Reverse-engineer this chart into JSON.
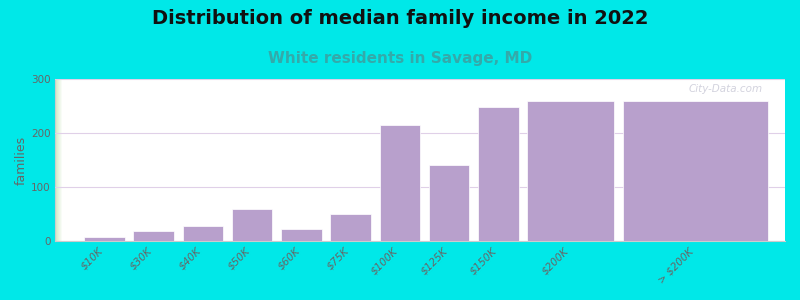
{
  "title": "Distribution of median family income in 2022",
  "subtitle": "White residents in Savage, MD",
  "ylabel": "families",
  "categories": [
    "$10K",
    "$30K",
    "$40K",
    "$50K",
    "$60K",
    "$75K",
    "$100K",
    "$125K",
    "$150K",
    "$200K",
    "> $200K"
  ],
  "values": [
    8,
    18,
    27,
    60,
    22,
    50,
    215,
    140,
    248,
    260,
    260
  ],
  "bar_widths": [
    0.7,
    0.7,
    0.7,
    0.7,
    0.7,
    0.7,
    0.7,
    0.7,
    0.7,
    1.5,
    2.5
  ],
  "bar_color": "#b8a0cc",
  "bar_edgecolor": "white",
  "background_outer": "#00e8e8",
  "background_inner_colors": [
    "#d0e8c0",
    "#e8f0e0",
    "#f5f5f5",
    "#ffffff"
  ],
  "title_fontsize": 14,
  "subtitle_fontsize": 11,
  "subtitle_color": "#33aaaa",
  "ylabel_fontsize": 9,
  "tick_fontsize": 7.5,
  "ylim": [
    0,
    300
  ],
  "yticks": [
    0,
    100,
    200,
    300
  ],
  "watermark": "City-Data.com",
  "grid_color": "#e0d0e8",
  "spine_color": "#cccccc"
}
